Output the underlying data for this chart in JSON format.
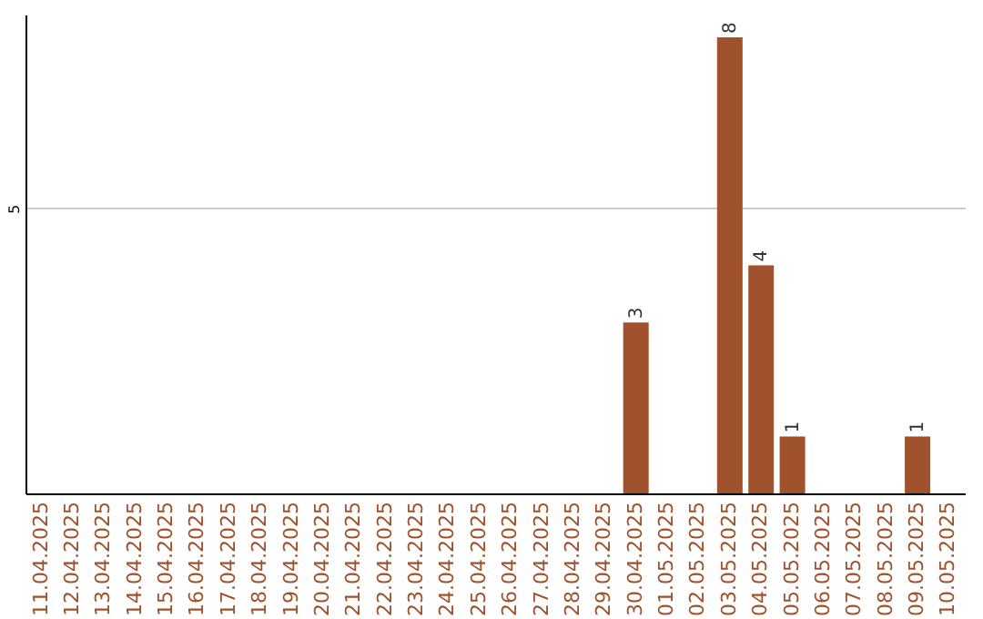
{
  "chart_data": {
    "type": "bar",
    "categories": [
      "11.04.2025",
      "12.04.2025",
      "13.04.2025",
      "14.04.2025",
      "15.04.2025",
      "16.04.2025",
      "17.04.2025",
      "18.04.2025",
      "19.04.2025",
      "20.04.2025",
      "21.04.2025",
      "22.04.2025",
      "23.04.2025",
      "24.04.2025",
      "25.04.2025",
      "26.04.2025",
      "27.04.2025",
      "28.04.2025",
      "29.04.2025",
      "30.04.2025",
      "01.05.2025",
      "02.05.2025",
      "03.05.2025",
      "04.05.2025",
      "05.05.2025",
      "06.05.2025",
      "07.05.2025",
      "08.05.2025",
      "09.05.2025",
      "10.05.2025"
    ],
    "values": [
      null,
      null,
      null,
      null,
      null,
      null,
      null,
      null,
      null,
      null,
      null,
      null,
      null,
      null,
      null,
      null,
      null,
      null,
      null,
      3,
      null,
      null,
      8,
      4,
      1,
      null,
      null,
      null,
      1,
      null
    ],
    "color": "#a0522d",
    "ylim": [
      0,
      8.4
    ],
    "yticks": [
      5
    ],
    "grid": "y",
    "data_labels": true
  }
}
